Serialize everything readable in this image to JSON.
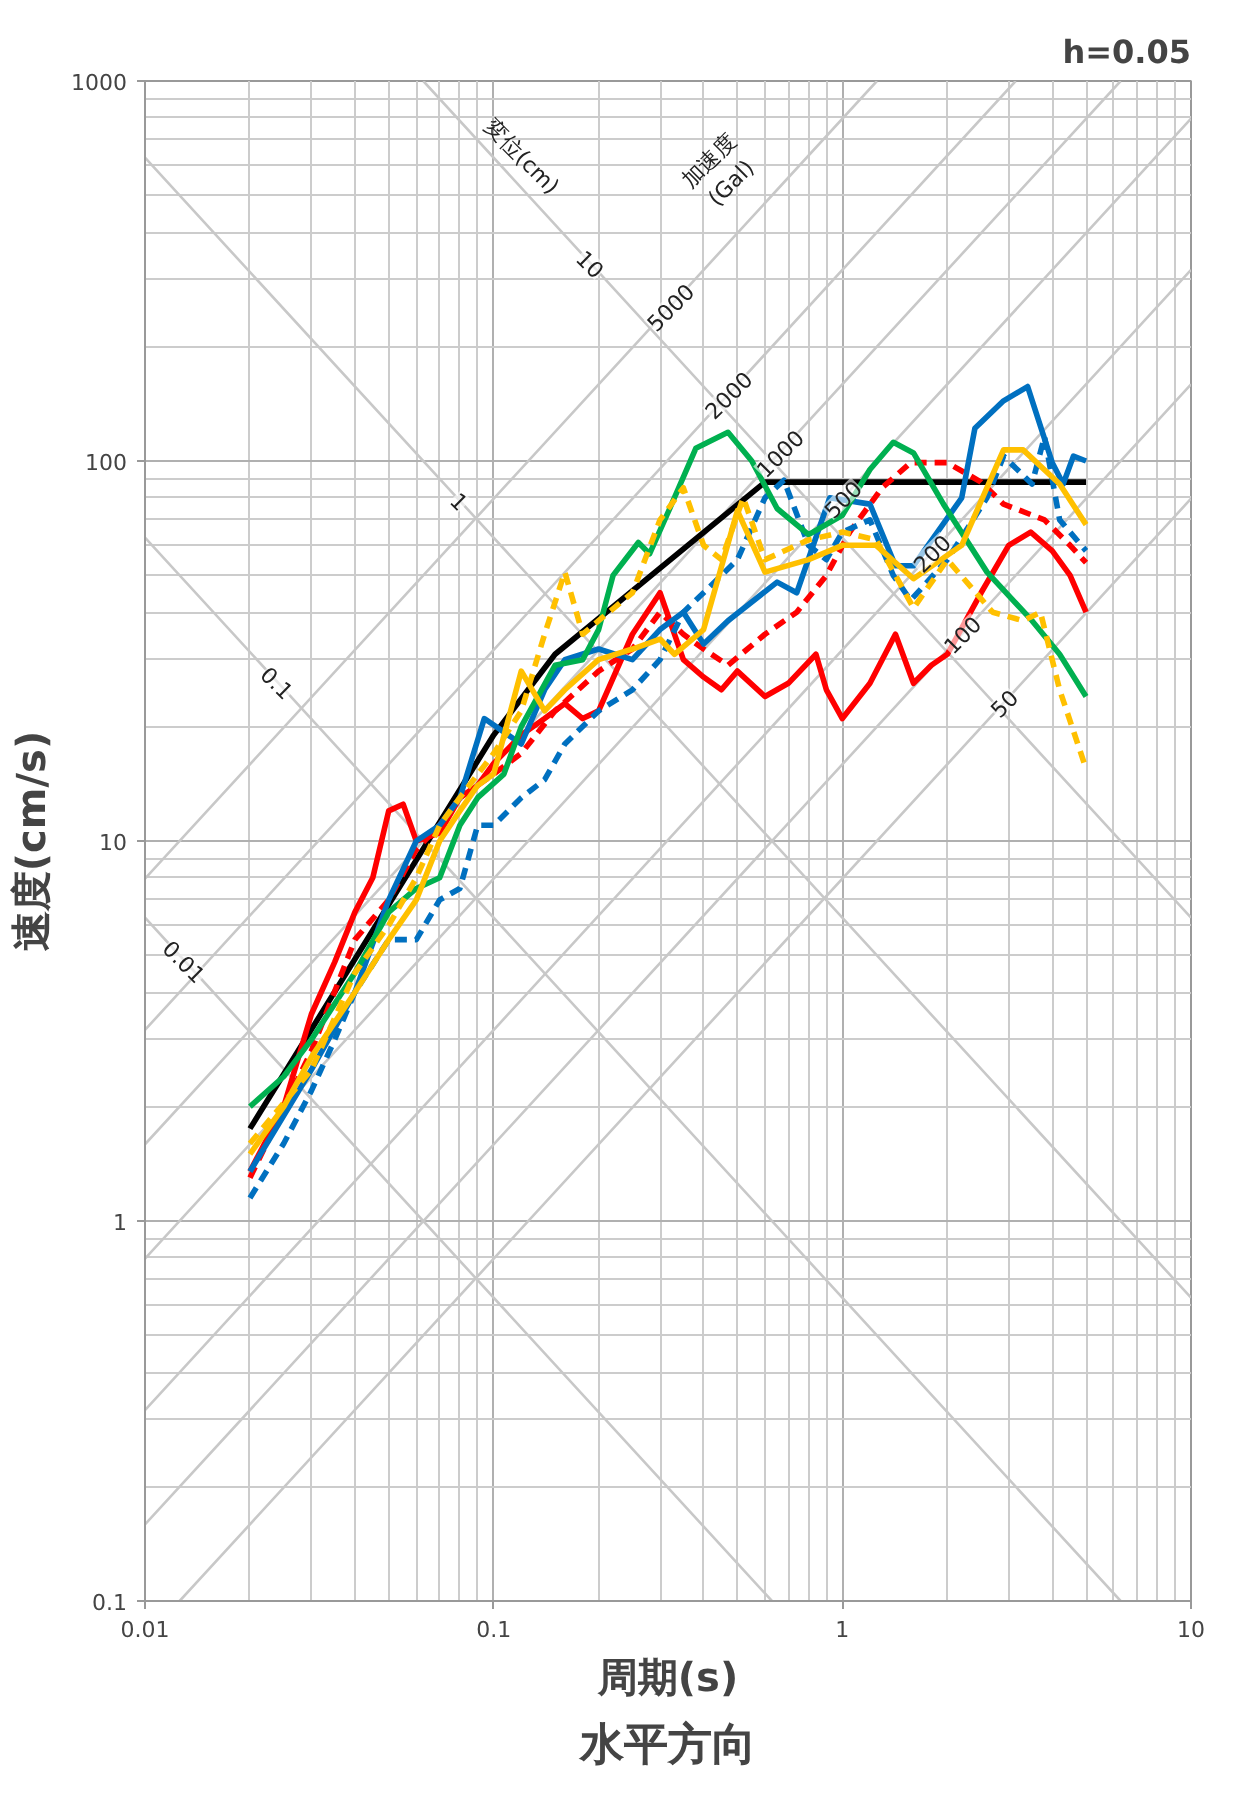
{
  "chart_data": {
    "type": "line",
    "title": "水平方向",
    "xlabel": "周期(s)",
    "ylabel": "速度(cm/s)",
    "log": "xy",
    "grid": true,
    "line_style": "solid",
    "xlim": [
      0.01,
      10
    ],
    "ylim": [
      0.1,
      1000
    ],
    "xticks": [
      0.01,
      0.1,
      1,
      10
    ],
    "yticks": [
      0.1,
      1,
      10,
      100,
      1000
    ],
    "annotations": [
      "h=0.05",
      "変位(cm)",
      "加速度\n(Gal)"
    ],
    "series": [
      {
        "name": "0.01",
        "color": "#c8c8c8",
        "x": [
          0.01,
          0.013,
          0.6283
        ],
        "values": [
          6.283,
          4.833,
          0.1
        ]
      },
      {
        "name": "0.1",
        "color": "#c8c8c8",
        "x": [
          0.01,
          0.024,
          6.2832
        ],
        "values": [
          62.83,
          26.18,
          0.1
        ]
      },
      {
        "name": "1",
        "color": "#c8c8c8",
        "x": [
          0.01,
          0.08,
          10
        ],
        "values": [
          628.3,
          78.54,
          0.6283
        ]
      },
      {
        "name": "10",
        "color": "#c8c8c8",
        "x": [
          0.06283,
          0.19,
          10
        ],
        "values": [
          1000,
          330.7,
          6.283
        ]
      },
      {
        "name": "5000",
        "color": "#c8c8c8",
        "x": [
          0.01,
          0.32,
          1.2566
        ],
        "values": [
          7.958,
          254.6,
          1000
        ]
      },
      {
        "name": "2000",
        "color": "#c8c8c8",
        "x": [
          0.01,
          0.47,
          3.1416
        ],
        "values": [
          3.183,
          149.6,
          1000
        ]
      },
      {
        "name": "1000",
        "color": "#c8c8c8",
        "x": [
          0.01,
          0.66,
          6.2832
        ],
        "values": [
          1.592,
          105.0,
          1000
        ]
      },
      {
        "name": "500",
        "color": "#c8c8c8",
        "x": [
          0.01,
          1.0,
          10
        ],
        "values": [
          0.796,
          79.58,
          795.8
        ]
      },
      {
        "name": "200",
        "color": "#c8c8c8",
        "x": [
          0.01,
          1.8,
          10
        ],
        "values": [
          0.318,
          57.3,
          318.3
        ]
      },
      {
        "name": "100",
        "color": "#c8c8c8",
        "x": [
          0.01,
          2.2,
          10
        ],
        "values": [
          0.159,
          35.0,
          159.2
        ]
      },
      {
        "name": "50",
        "color": "#c8c8c8",
        "x": [
          0.01257,
          2.9,
          10
        ],
        "values": [
          0.1,
          23.08,
          79.58
        ]
      },
      {
        "color": "#000000",
        "x": [
          0.02,
          0.1,
          0.15,
          0.6,
          5
        ],
        "values": [
          1.75,
          19,
          31,
          88,
          88
        ]
      },
      {
        "color": "#ff0000",
        "x": [
          0.02,
          0.025,
          0.03,
          0.035,
          0.04,
          0.045,
          0.05,
          0.055,
          0.06,
          0.07,
          0.08,
          0.09,
          0.1,
          0.12,
          0.14,
          0.16,
          0.18,
          0.2,
          0.25,
          0.3,
          0.35,
          0.4,
          0.45,
          0.5,
          0.6,
          0.7,
          0.84,
          0.9,
          1,
          1.2,
          1.42,
          1.6,
          1.8,
          2,
          2.5,
          3,
          3.47,
          4,
          4.5,
          5
        ],
        "values": [
          1.35,
          2.0,
          3.5,
          4.8,
          6.5,
          8,
          12,
          12.5,
          10,
          10.5,
          13,
          14,
          16,
          19,
          21,
          23,
          21,
          22,
          35,
          45,
          30,
          27,
          25,
          28,
          24,
          26,
          31,
          25,
          21,
          26,
          35,
          26,
          29,
          31,
          45,
          60,
          65,
          58,
          50,
          40
        ]
      },
      {
        "color": "#ff0000",
        "line_style": "dashed",
        "x": [
          0.02,
          0.03,
          0.04,
          0.05,
          0.06,
          0.07,
          0.08,
          0.1,
          0.12,
          0.15,
          0.2,
          0.25,
          0.3,
          0.35,
          0.4,
          0.47,
          0.6,
          0.74,
          0.9,
          1.05,
          1.3,
          1.57,
          2,
          2.5,
          2.9,
          3.8,
          4.5,
          5
        ],
        "values": [
          1.3,
          2.8,
          5.5,
          7,
          9.5,
          11,
          13,
          15,
          17,
          22,
          28,
          32,
          40,
          35,
          32,
          29,
          35,
          40,
          50,
          65,
          85,
          99,
          99,
          88,
          77,
          70,
          60,
          54
        ]
      },
      {
        "color": "#0070c0",
        "x": [
          0.02,
          0.03,
          0.04,
          0.05,
          0.06,
          0.07,
          0.08,
          0.094,
          0.12,
          0.14,
          0.16,
          0.2,
          0.25,
          0.3,
          0.35,
          0.4,
          0.47,
          0.65,
          0.74,
          0.92,
          1.2,
          1.42,
          1.6,
          2.2,
          2.4,
          2.9,
          3.4,
          4.0,
          4.3,
          4.6,
          5
        ],
        "values": [
          1.35,
          2.5,
          4,
          7,
          10,
          11,
          13,
          21,
          18,
          25,
          30,
          32,
          30,
          36,
          40,
          33,
          38,
          48,
          45,
          80,
          77,
          53,
          53,
          80,
          122,
          144,
          157,
          99,
          87,
          103,
          100
        ]
      },
      {
        "color": "#0070c0",
        "line_style": "dashed",
        "x": [
          0.02,
          0.025,
          0.03,
          0.035,
          0.04,
          0.05,
          0.06,
          0.07,
          0.08,
          0.09,
          0.1,
          0.12,
          0.14,
          0.16,
          0.2,
          0.25,
          0.3,
          0.35,
          0.4,
          0.5,
          0.6,
          0.68,
          0.8,
          0.9,
          1,
          1.2,
          1.4,
          1.57,
          2,
          2.6,
          2.9,
          3.5,
          3.8,
          4.2,
          5
        ],
        "values": [
          1.15,
          1.6,
          2.2,
          3,
          4,
          5.5,
          5.5,
          7,
          7.5,
          11,
          11,
          13,
          14.5,
          18,
          22,
          25,
          30,
          40,
          45,
          55,
          80,
          89,
          60,
          55,
          65,
          70,
          50,
          43,
          55,
          80,
          103,
          87,
          116,
          70,
          58
        ]
      },
      {
        "color": "#00b050",
        "x": [
          0.02,
          0.025,
          0.03,
          0.04,
          0.05,
          0.06,
          0.07,
          0.08,
          0.09,
          0.107,
          0.12,
          0.15,
          0.18,
          0.2,
          0.22,
          0.26,
          0.28,
          0.32,
          0.38,
          0.47,
          0.55,
          0.65,
          0.8,
          1,
          1.2,
          1.4,
          1.6,
          1.95,
          2.6,
          3.5,
          4.2,
          5
        ],
        "values": [
          2.0,
          2.4,
          3,
          4.5,
          6.5,
          7.5,
          8,
          11,
          13,
          15,
          20,
          29,
          30,
          36,
          50,
          61,
          57,
          75,
          108,
          119,
          100,
          75,
          64,
          72,
          95,
          112,
          105,
          77,
          51,
          38,
          31,
          24
        ]
      },
      {
        "color": "#ffc000",
        "x": [
          0.02,
          0.025,
          0.03,
          0.04,
          0.05,
          0.06,
          0.07,
          0.08,
          0.09,
          0.1,
          0.12,
          0.14,
          0.16,
          0.2,
          0.25,
          0.3,
          0.33,
          0.4,
          0.5,
          0.6,
          0.8,
          1,
          1.25,
          1.6,
          2.2,
          2.9,
          3.3,
          4.2,
          5
        ],
        "values": [
          1.5,
          2,
          2.7,
          4,
          5.5,
          7,
          10,
          12,
          14,
          15,
          28,
          22,
          25,
          30,
          32,
          34,
          31,
          36,
          74,
          51,
          55,
          60,
          60,
          49,
          60,
          107,
          107,
          87,
          68
        ]
      },
      {
        "color": "#ffc000",
        "line_style": "dashed",
        "x": [
          0.02,
          0.03,
          0.04,
          0.05,
          0.06,
          0.07,
          0.08,
          0.1,
          0.12,
          0.14,
          0.16,
          0.18,
          0.2,
          0.25,
          0.3,
          0.35,
          0.4,
          0.45,
          0.52,
          0.6,
          0.8,
          1,
          1.25,
          1.6,
          2,
          2.7,
          3.3,
          3.7,
          4.2,
          5
        ],
        "values": [
          1.6,
          2.5,
          4.5,
          6,
          8,
          11,
          13,
          17,
          22,
          35,
          51,
          35,
          38,
          45,
          70,
          85,
          60,
          55,
          80,
          55,
          62,
          65,
          62,
          41,
          55,
          40,
          38,
          40,
          25,
          15.5
        ]
      }
    ]
  }
}
